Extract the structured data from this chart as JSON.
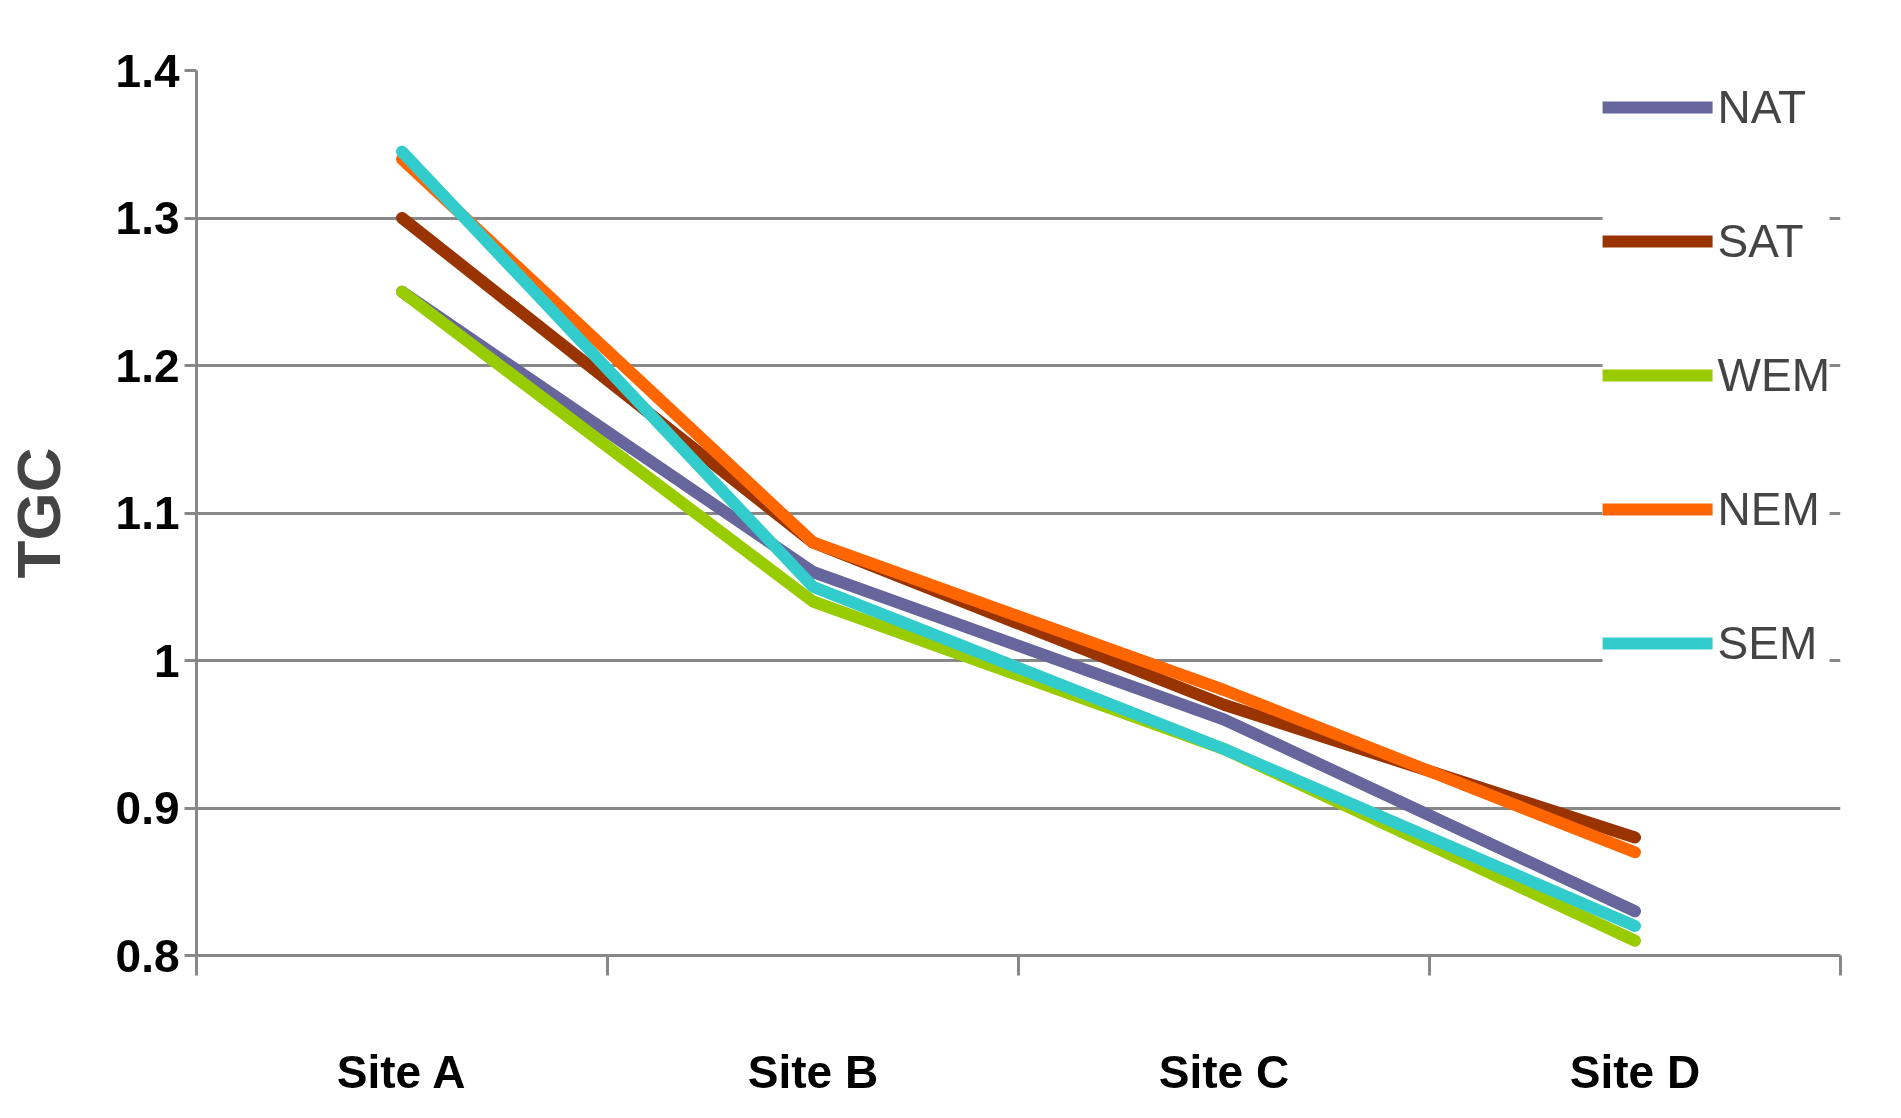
{
  "chart_data": {
    "type": "line",
    "ylabel": "TGC",
    "categories": [
      "Site A",
      "Site B",
      "Site C",
      "Site D"
    ],
    "series": [
      {
        "name": "NAT",
        "color": "#66659c",
        "values": [
          1.25,
          1.06,
          0.96,
          0.83
        ]
      },
      {
        "name": "SAT",
        "color": "#993300",
        "values": [
          1.3,
          1.08,
          0.97,
          0.88
        ]
      },
      {
        "name": "WEM",
        "color": "#99cc00",
        "values": [
          1.25,
          1.04,
          0.94,
          0.81
        ]
      },
      {
        "name": "NEM",
        "color": "#ff6600",
        "values": [
          1.34,
          1.08,
          0.98,
          0.87
        ]
      },
      {
        "name": "SEM",
        "color": "#33cccc",
        "values": [
          1.345,
          1.05,
          0.94,
          0.82
        ]
      }
    ],
    "ylim": [
      0.8,
      1.4
    ],
    "yticks": [
      0.8,
      0.9,
      1,
      1.1,
      1.2,
      1.3,
      1.4
    ],
    "grid": "y",
    "legend": "top right",
    "marker": "none",
    "line_style": "solid"
  }
}
